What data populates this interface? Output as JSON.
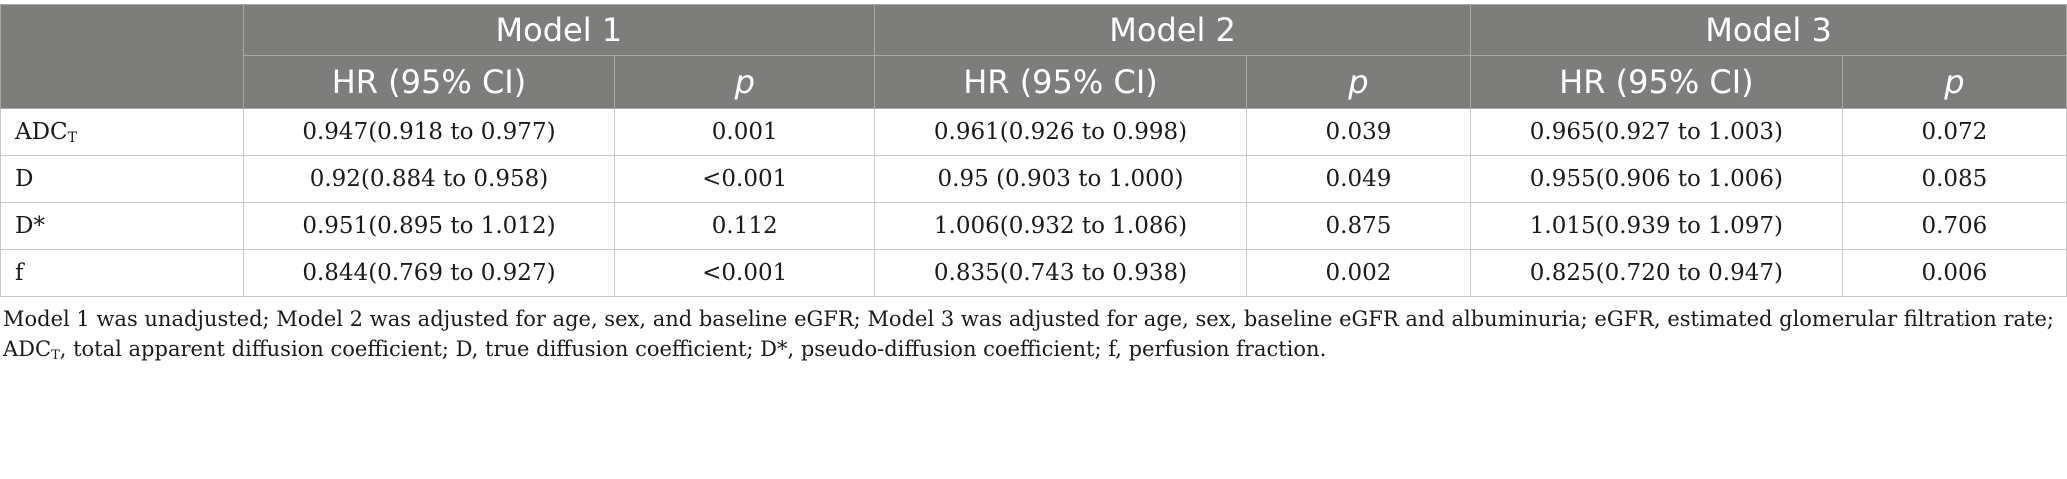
{
  "table": {
    "models": [
      "Model 1",
      "Model 2",
      "Model 3"
    ],
    "columns": {
      "hr": "HR (95% CI)",
      "p": "p"
    },
    "rows": [
      {
        "label": "ADC",
        "label_sub": "T",
        "m1_hr": "0.947(0.918 to 0.977)",
        "m1_p": "0.001",
        "m2_hr": "0.961(0.926 to 0.998)",
        "m2_p": "0.039",
        "m3_hr": "0.965(0.927 to 1.003)",
        "m3_p": "0.072"
      },
      {
        "label": "D",
        "label_sub": "",
        "m1_hr": "0.92(0.884 to 0.958)",
        "m1_p": "<0.001",
        "m2_hr": "0.95 (0.903 to 1.000)",
        "m2_p": "0.049",
        "m3_hr": "0.955(0.906 to 1.006)",
        "m3_p": "0.085"
      },
      {
        "label": "D*",
        "label_sub": "",
        "m1_hr": "0.951(0.895 to 1.012)",
        "m1_p": "0.112",
        "m2_hr": "1.006(0.932 to 1.086)",
        "m2_p": "0.875",
        "m3_hr": "1.015(0.939 to 1.097)",
        "m3_p": "0.706"
      },
      {
        "label": "f",
        "label_sub": "",
        "m1_hr": "0.844(0.769 to 0.927)",
        "m1_p": "<0.001",
        "m2_hr": "0.835(0.743 to 0.938)",
        "m2_p": "0.002",
        "m3_hr": "0.825(0.720 to 0.947)",
        "m3_p": "0.006"
      }
    ]
  },
  "footnote": {
    "line1": "Model 1 was unadjusted; Model 2 was adjusted for age, sex, and baseline eGFR; Model 3 was adjusted for age, sex, baseline eGFR and albuminuria; eGFR, estimated glomerular filtration rate;",
    "line2_abbr": "ADC",
    "line2_sub": "T",
    "line2_rest": ", total apparent diffusion coefficient; D, true diffusion coefficient; D*, pseudo-diffusion coefficient; f, perfusion fraction."
  },
  "colors": {
    "header_bg": "#7d7e7c",
    "header_text": "#ffffff",
    "grid": "#c9c9c9"
  }
}
